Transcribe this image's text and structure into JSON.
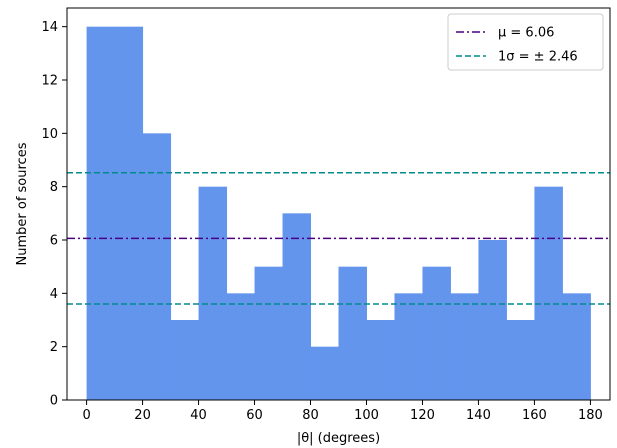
{
  "chart_data": {
    "type": "bar",
    "title": "",
    "xlabel": "|θ| (degrees)",
    "ylabel": "Number of sources",
    "bin_edges": [
      0,
      10,
      20,
      30,
      40,
      50,
      60,
      70,
      80,
      90,
      100,
      110,
      120,
      130,
      140,
      150,
      160,
      170,
      180
    ],
    "values": [
      14,
      14,
      10,
      3,
      8,
      4,
      5,
      7,
      2,
      5,
      3,
      4,
      5,
      4,
      6,
      3,
      8,
      4
    ],
    "xlim": [
      -7,
      187
    ],
    "ylim": [
      0,
      14.7
    ],
    "xticks": [
      0,
      20,
      40,
      60,
      80,
      100,
      120,
      140,
      160,
      180
    ],
    "yticks": [
      0,
      2,
      4,
      6,
      8,
      10,
      12,
      14
    ],
    "bar_color": "#6495ed",
    "hlines": [
      {
        "y": 6.06,
        "color": "#4b0082",
        "style": "dashdot",
        "label": "μ = 6.06"
      },
      {
        "y": 8.52,
        "color": "#008b8b",
        "style": "dashed",
        "label": "1σ = ± 2.46"
      },
      {
        "y": 3.6,
        "color": "#008b8b",
        "style": "dashed"
      }
    ],
    "legend": {
      "position": "top-right",
      "entries": [
        {
          "label": "μ = 6.06",
          "color": "#4b0082",
          "style": "dashdot"
        },
        {
          "label": "1σ = ± 2.46",
          "color": "#008b8b",
          "style": "dashed"
        }
      ]
    },
    "grid": false
  }
}
